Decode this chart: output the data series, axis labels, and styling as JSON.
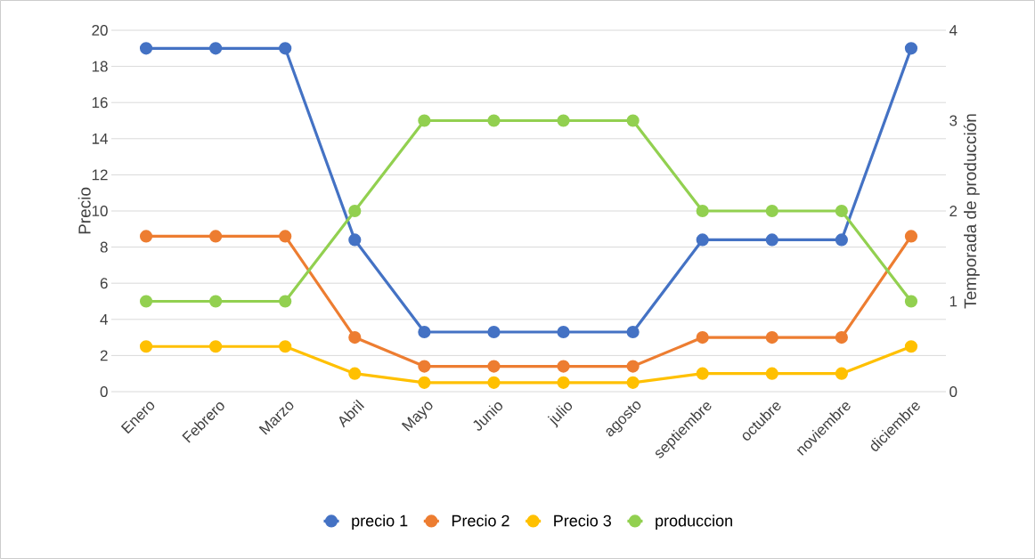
{
  "chart_data": {
    "type": "line",
    "categories": [
      "Enero",
      "Febrero",
      "Marzo",
      "Abril",
      "Mayo",
      "Junio",
      "julio",
      "agosto",
      "septiembre",
      "octubre",
      "noviembre",
      "diciembre"
    ],
    "series": [
      {
        "name": "precio 1",
        "color": "#4472c4",
        "values": [
          19,
          19,
          19,
          8.4,
          3.3,
          3.3,
          3.3,
          3.3,
          8.4,
          8.4,
          8.4,
          19
        ]
      },
      {
        "name": "Precio 2",
        "color": "#ed7d31",
        "values": [
          8.6,
          8.6,
          8.6,
          3,
          1.4,
          1.4,
          1.4,
          1.4,
          3,
          3,
          3,
          8.6
        ]
      },
      {
        "name": "Precio 3",
        "color": "#ffc000",
        "values": [
          2.5,
          2.5,
          2.5,
          1,
          0.5,
          0.5,
          0.5,
          0.5,
          1,
          1,
          1,
          2.5
        ]
      },
      {
        "name": "produccion",
        "color": "#92d050",
        "axis": "y2",
        "values": [
          1,
          1,
          1,
          2,
          3,
          3,
          3,
          3,
          2,
          2,
          2,
          1
        ]
      }
    ],
    "ylabel": "Precio",
    "y2label": "Temporada de producción",
    "ylim": [
      0,
      20
    ],
    "yticks": [
      0,
      2,
      4,
      6,
      8,
      10,
      12,
      14,
      16,
      18,
      20
    ],
    "y2lim": [
      0,
      4
    ],
    "y2ticks": [
      0,
      1,
      2,
      3,
      4
    ],
    "grid": "y",
    "legend": "bottom",
    "marker": "circle",
    "line_style": "solid"
  }
}
